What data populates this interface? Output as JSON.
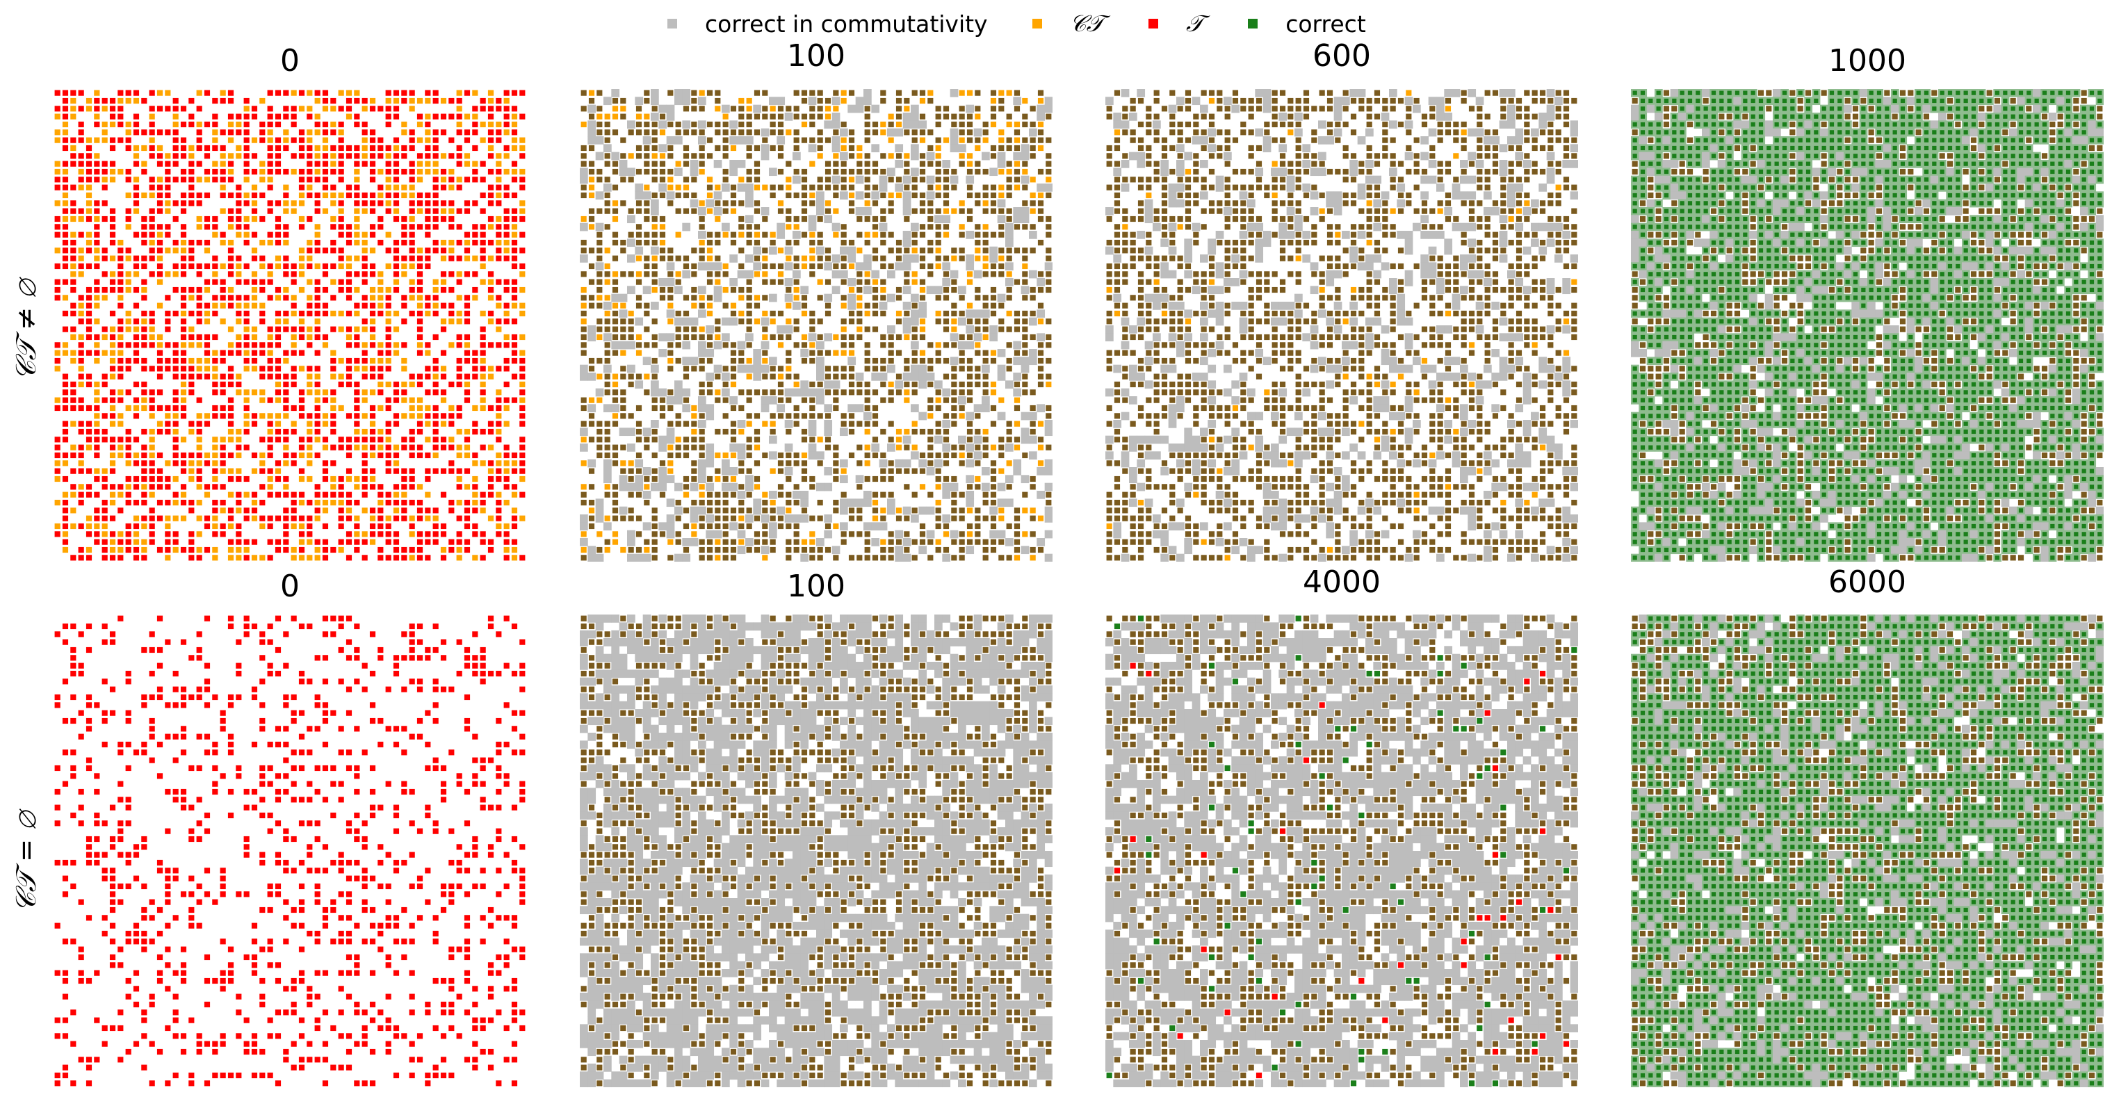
{
  "legend": [
    {
      "label": "correct in commutativity",
      "color": "#bdbdbd",
      "math": false
    },
    {
      "label": "𝒞𝒯",
      "color": "#ffa500",
      "math": true
    },
    {
      "label": "𝒯",
      "color": "#ff0000",
      "math": true
    },
    {
      "label": "correct",
      "color": "#1a7f1a",
      "math": false
    }
  ],
  "rows": [
    {
      "label": "𝒞𝒯 ≠ ∅"
    },
    {
      "label": "𝒞𝒯 = ∅"
    }
  ],
  "colors": {
    "background": "#ffffff",
    "gray": "#bdbdbd",
    "orange": "#ffa500",
    "red": "#ff0000",
    "green": "#1a7f1a",
    "brown": "#7a5a1e"
  },
  "chart_data": [
    {
      "type": "heatmap",
      "row": 0,
      "title": "0",
      "grid": 60,
      "composition": {
        "empty": 0.35,
        "orange": 0.22,
        "red": 0.43
      }
    },
    {
      "type": "heatmap",
      "row": 0,
      "title": "100",
      "grid": 60,
      "composition": {
        "empty": 0.34,
        "gray": 0.18,
        "orange": 0.1,
        "brown": 0.38
      }
    },
    {
      "type": "heatmap",
      "row": 0,
      "title": "600",
      "grid": 60,
      "composition": {
        "empty": 0.32,
        "gray": 0.18,
        "orange": 0.02,
        "brown": 0.48
      }
    },
    {
      "type": "heatmap",
      "row": 0,
      "title": "1000",
      "grid": 60,
      "composition": {
        "empty": 0.04,
        "gray": 0.12,
        "brown": 0.2,
        "green": 0.64
      }
    },
    {
      "type": "heatmap",
      "row": 1,
      "title": "0",
      "grid": 60,
      "composition": {
        "empty": 0.72,
        "red": 0.28
      }
    },
    {
      "type": "heatmap",
      "row": 1,
      "title": "100",
      "grid": 60,
      "composition": {
        "empty": 0.12,
        "gray": 0.55,
        "brown": 0.33
      }
    },
    {
      "type": "heatmap",
      "row": 1,
      "title": "4000",
      "grid": 60,
      "composition": {
        "empty": 0.14,
        "gray": 0.54,
        "brown": 0.29,
        "green": 0.02,
        "red": 0.01
      }
    },
    {
      "type": "heatmap",
      "row": 1,
      "title": "6000",
      "grid": 60,
      "composition": {
        "empty": 0.04,
        "gray": 0.14,
        "brown": 0.22,
        "green": 0.6
      }
    }
  ]
}
